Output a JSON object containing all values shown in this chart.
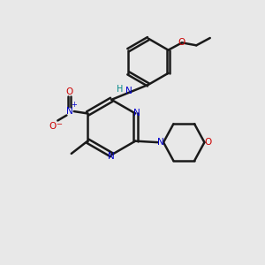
{
  "background_color": "#e8e8e8",
  "bond_color": "#1a1a1a",
  "n_color": "#0000cc",
  "o_color": "#cc0000",
  "h_color": "#008888",
  "line_width": 1.8,
  "figsize": [
    3.0,
    3.0
  ],
  "dpi": 100,
  "xlim": [
    0,
    10
  ],
  "ylim": [
    0,
    10
  ]
}
